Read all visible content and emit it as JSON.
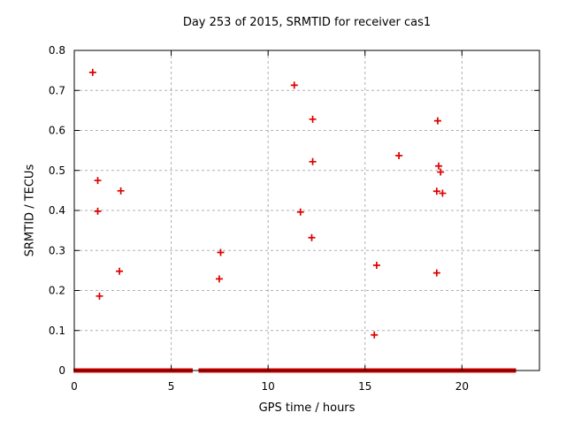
{
  "title": "Day 253 of 2015, SRMTID for receiver cas1",
  "chart_data": {
    "type": "scatter",
    "title": "Day 253 of 2015, SRMTID for receiver cas1",
    "xlabel": "GPS time / hours",
    "ylabel": "SRMTID / TECUs",
    "xlim": [
      0,
      24
    ],
    "ylim": [
      0,
      0.8
    ],
    "xticks": [
      0,
      5,
      10,
      15,
      20
    ],
    "yticks": [
      0,
      0.1,
      0.2,
      0.3,
      0.4,
      0.5,
      0.6,
      0.7,
      0.8
    ],
    "grid": true,
    "legend_position": "none",
    "marker": "plus",
    "marker_color": "#dc0000",
    "axis_color": "#000000",
    "grid_color": "#b0b0b0",
    "points": [
      [
        0.95,
        0.745
      ],
      [
        1.21,
        0.475
      ],
      [
        1.21,
        0.398
      ],
      [
        1.3,
        0.186
      ],
      [
        2.33,
        0.248
      ],
      [
        2.4,
        0.449
      ],
      [
        7.48,
        0.229
      ],
      [
        7.55,
        0.295
      ],
      [
        11.35,
        0.713
      ],
      [
        11.67,
        0.396
      ],
      [
        12.25,
        0.332
      ],
      [
        12.3,
        0.628
      ],
      [
        12.3,
        0.522
      ],
      [
        15.48,
        0.089
      ],
      [
        15.6,
        0.263
      ],
      [
        16.75,
        0.537
      ],
      [
        18.7,
        0.448
      ],
      [
        18.7,
        0.244
      ],
      [
        18.75,
        0.624
      ],
      [
        18.8,
        0.511
      ],
      [
        18.9,
        0.496
      ],
      [
        19.0,
        0.443
      ]
    ],
    "zero_band": {
      "y": 0,
      "intervals": [
        [
          0.05,
          0.5
        ],
        [
          0.58,
          1.42
        ],
        [
          1.52,
          2.67
        ],
        [
          2.76,
          3.28
        ],
        [
          3.4,
          3.8
        ],
        [
          3.92,
          4.36
        ],
        [
          4.44,
          4.66
        ],
        [
          4.76,
          4.94
        ],
        [
          5.02,
          5.1
        ],
        [
          5.16,
          5.46
        ],
        [
          5.56,
          5.76
        ],
        [
          5.86,
          6.02
        ],
        [
          6.5,
          7.92
        ],
        [
          8.02,
          8.26
        ],
        [
          8.38,
          8.56
        ],
        [
          8.68,
          8.86
        ],
        [
          9.02,
          9.46
        ],
        [
          9.56,
          10.46
        ],
        [
          10.56,
          10.98
        ],
        [
          11.06,
          11.6
        ],
        [
          11.7,
          12.62
        ],
        [
          12.7,
          18.18
        ],
        [
          18.28,
          18.6
        ],
        [
          18.7,
          18.9
        ],
        [
          19.0,
          19.16
        ],
        [
          19.26,
          19.4
        ],
        [
          19.5,
          19.6
        ],
        [
          19.7,
          19.84
        ],
        [
          19.94,
          20.08
        ],
        [
          20.18,
          20.44
        ],
        [
          20.54,
          21.32
        ],
        [
          21.46,
          21.6
        ],
        [
          21.72,
          21.88
        ],
        [
          21.98,
          22.12
        ],
        [
          22.28,
          22.4
        ],
        [
          22.56,
          22.7
        ]
      ]
    }
  }
}
